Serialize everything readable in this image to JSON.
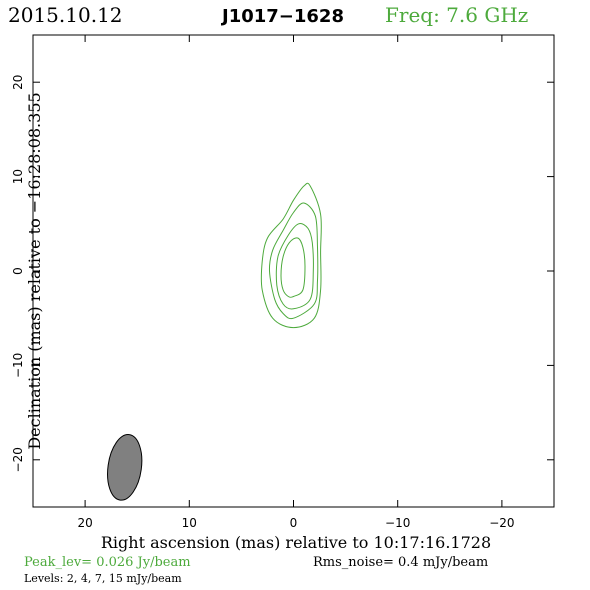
{
  "header": {
    "date": "2015.10.12",
    "source": "J1017−1628",
    "freq": "Freq: 7.6 GHz"
  },
  "footer": {
    "peak": "Peak_lev=  0.026 Jy/beam",
    "rms": "Rms_noise=  0.4 mJy/beam",
    "levels": "Levels:   2,    4,    7,   15 mJy/beam"
  },
  "colors": {
    "contour": "#4daa3c",
    "freq": "#4daa3c",
    "beam": "#808080"
  },
  "chart_data": {
    "type": "contour",
    "title": "J1017−1628",
    "xlabel": "Right ascension (mas) relative to 10:17:16.1728",
    "ylabel": "Declination (mas) relative to −16:28:08.355",
    "xlim": [
      25,
      -25
    ],
    "ylim": [
      -25,
      25
    ],
    "x_ticks": [
      20,
      10,
      0,
      -10,
      -20
    ],
    "x_tick_labels": [
      "20",
      "10",
      "0",
      "−10",
      "−20"
    ],
    "y_ticks": [
      20,
      10,
      0,
      -10,
      -20
    ],
    "y_tick_labels": [
      "20",
      "10",
      "0",
      "−10",
      "−20"
    ],
    "levels_mJy": [
      2,
      4,
      7,
      15
    ],
    "contours": [
      {
        "level": 2,
        "points": [
          [
            0,
            -6
          ],
          [
            -2,
            -5
          ],
          [
            -2.6,
            -2
          ],
          [
            -2.6,
            2
          ],
          [
            -2.6,
            6
          ],
          [
            -1.6,
            9
          ],
          [
            -1,
            9
          ],
          [
            0,
            7.5
          ],
          [
            1,
            5.5
          ],
          [
            2.5,
            3.5
          ],
          [
            3,
            1
          ],
          [
            3,
            -2
          ],
          [
            2,
            -5
          ]
        ]
      },
      {
        "level": 4,
        "points": [
          [
            0,
            -5
          ],
          [
            -2,
            -3.5
          ],
          [
            -2.3,
            -1
          ],
          [
            -2.3,
            2.5
          ],
          [
            -2.1,
            5.8
          ],
          [
            -1,
            7.2
          ],
          [
            0,
            6.2
          ],
          [
            1,
            4.3
          ],
          [
            2,
            2.2
          ],
          [
            2.3,
            0
          ],
          [
            1.8,
            -3
          ],
          [
            1,
            -4.5
          ]
        ]
      },
      {
        "level": 7,
        "points": [
          [
            0,
            -4
          ],
          [
            -1.6,
            -3
          ],
          [
            -1.9,
            0
          ],
          [
            -1.8,
            3
          ],
          [
            -1.4,
            4.5
          ],
          [
            -0.5,
            5
          ],
          [
            0.5,
            3.8
          ],
          [
            1.5,
            1.5
          ],
          [
            1.6,
            -1.5
          ],
          [
            1,
            -3.5
          ]
        ]
      },
      {
        "level": 15,
        "points": [
          [
            0,
            -2.7
          ],
          [
            -0.9,
            -2
          ],
          [
            -1.1,
            0.5
          ],
          [
            -0.9,
            2.5
          ],
          [
            -0.4,
            3.5
          ],
          [
            0.4,
            3
          ],
          [
            1,
            1.5
          ],
          [
            1.2,
            -0.5
          ],
          [
            1,
            -2
          ],
          [
            0.5,
            -2.7
          ]
        ]
      }
    ],
    "beam": {
      "center": [
        16.2,
        -20.8
      ],
      "major": 7.0,
      "minor": 3.2,
      "pa_deg": 8
    },
    "grid": false
  }
}
